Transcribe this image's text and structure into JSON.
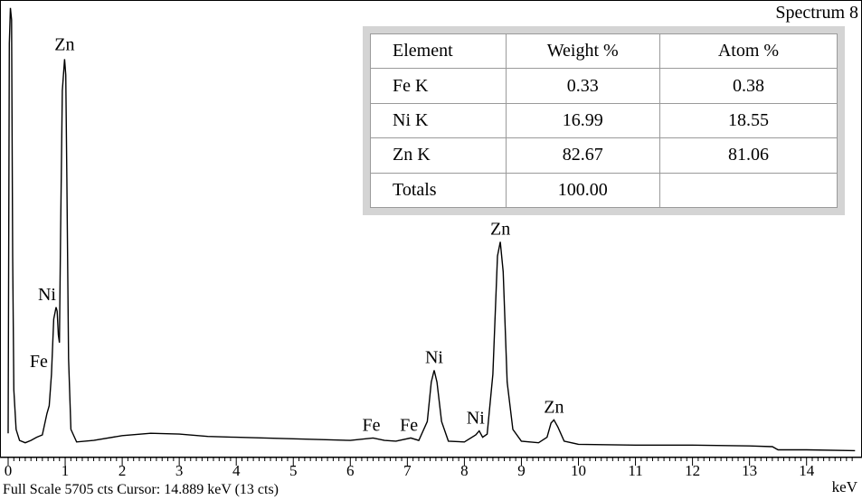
{
  "spectrum_title": "Spectrum 8",
  "table": {
    "headers": [
      "Element",
      "Weight %",
      "Atom %"
    ],
    "rows": [
      [
        "Fe K",
        "0.33",
        "0.38"
      ],
      [
        "Ni  K",
        "16.99",
        "18.55"
      ],
      [
        "Zn K",
        "82.67",
        "81.06"
      ],
      [
        "Totals",
        "100.00",
        ""
      ]
    ]
  },
  "status": "Full Scale 5705 cts Cursor: 14.889 keV (13 cts)",
  "chart_data": {
    "type": "line",
    "title": "Spectrum 8",
    "xlabel": "keV",
    "ylabel": "",
    "xlim": [
      -0.1,
      14.85
    ],
    "ylim": [
      0,
      5705
    ],
    "x_ticks": [
      0,
      1,
      2,
      3,
      4,
      5,
      6,
      7,
      8,
      9,
      10,
      11,
      12,
      13,
      14
    ],
    "x_tick_labels": [
      "0",
      "1",
      "2",
      "3",
      "4",
      "5",
      "6",
      "7",
      "8",
      "9",
      "10",
      "11",
      "12",
      "13",
      "14"
    ],
    "grid": false,
    "series": [
      {
        "points": [
          [
            0.0,
            250
          ],
          [
            0.02,
            5200
          ],
          [
            0.04,
            5650
          ],
          [
            0.06,
            5500
          ],
          [
            0.08,
            2500
          ],
          [
            0.1,
            800
          ],
          [
            0.14,
            300
          ],
          [
            0.2,
            160
          ],
          [
            0.3,
            130
          ],
          [
            0.4,
            160
          ],
          [
            0.5,
            200
          ],
          [
            0.6,
            230
          ],
          [
            0.68,
            500
          ],
          [
            0.72,
            600
          ],
          [
            0.76,
            1000
          ],
          [
            0.8,
            1700
          ],
          [
            0.84,
            1850
          ],
          [
            0.86,
            1800
          ],
          [
            0.88,
            1500
          ],
          [
            0.9,
            1400
          ],
          [
            0.92,
            2800
          ],
          [
            0.95,
            4600
          ],
          [
            0.99,
            5000
          ],
          [
            1.01,
            4800
          ],
          [
            1.03,
            3500
          ],
          [
            1.06,
            1200
          ],
          [
            1.1,
            300
          ],
          [
            1.2,
            140
          ],
          [
            1.5,
            160
          ],
          [
            2.0,
            220
          ],
          [
            2.5,
            250
          ],
          [
            3.0,
            240
          ],
          [
            3.5,
            210
          ],
          [
            4.0,
            200
          ],
          [
            4.5,
            190
          ],
          [
            5.0,
            180
          ],
          [
            5.5,
            170
          ],
          [
            6.0,
            160
          ],
          [
            6.4,
            190
          ],
          [
            6.6,
            160
          ],
          [
            6.8,
            150
          ],
          [
            7.06,
            190
          ],
          [
            7.2,
            160
          ],
          [
            7.35,
            400
          ],
          [
            7.42,
            900
          ],
          [
            7.47,
            1050
          ],
          [
            7.52,
            900
          ],
          [
            7.6,
            400
          ],
          [
            7.72,
            150
          ],
          [
            8.0,
            140
          ],
          [
            8.2,
            230
          ],
          [
            8.26,
            280
          ],
          [
            8.32,
            200
          ],
          [
            8.4,
            240
          ],
          [
            8.5,
            1000
          ],
          [
            8.58,
            2500
          ],
          [
            8.63,
            2680
          ],
          [
            8.68,
            2300
          ],
          [
            8.75,
            900
          ],
          [
            8.85,
            300
          ],
          [
            9.0,
            150
          ],
          [
            9.3,
            130
          ],
          [
            9.45,
            200
          ],
          [
            9.52,
            380
          ],
          [
            9.57,
            420
          ],
          [
            9.64,
            330
          ],
          [
            9.75,
            150
          ],
          [
            10.0,
            110
          ],
          [
            11.0,
            100
          ],
          [
            12.0,
            100
          ],
          [
            13.0,
            90
          ],
          [
            13.4,
            80
          ],
          [
            13.5,
            40
          ],
          [
            14.0,
            40
          ],
          [
            14.85,
            30
          ]
        ]
      }
    ],
    "annotations": [
      {
        "text": "Zn",
        "x": 0.99,
        "y": 5000
      },
      {
        "text": "Ni",
        "x": 0.84,
        "y": 1850
      },
      {
        "text": "Fe",
        "x": 0.76,
        "y": 1000
      },
      {
        "text": "Fe",
        "x": 6.4,
        "y": 190
      },
      {
        "text": "Fe",
        "x": 7.06,
        "y": 190
      },
      {
        "text": "Ni",
        "x": 7.47,
        "y": 1050
      },
      {
        "text": "Ni",
        "x": 8.26,
        "y": 280
      },
      {
        "text": "Zn",
        "x": 8.63,
        "y": 2680
      },
      {
        "text": "Zn",
        "x": 9.57,
        "y": 420
      }
    ]
  }
}
